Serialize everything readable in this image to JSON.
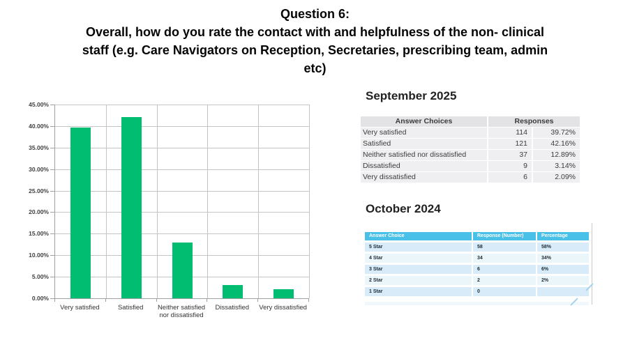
{
  "title": {
    "lines": [
      "Question 6:",
      "Overall, how do you rate the contact with and helpfulness of the non- clinical",
      "staff (e.g. Care Navigators on Reception, Secretaries, prescribing team, admin",
      "etc)"
    ]
  },
  "colors": {
    "bar_green": "#00bd71",
    "table_header_blue": "#49c0e8",
    "table_row_blue_dark": "#d7ecf8",
    "table_row_blue_light": "#ebf6fb",
    "table_header_gray": "#e3e3e6",
    "table_row_gray": "#efeff1"
  },
  "chart_data": [
    {
      "type": "bar",
      "title": "",
      "xlabel": "",
      "ylabel": "",
      "categories": [
        "Very satisfied",
        "Satisfied",
        "Neither satisfied nor dissatisfied",
        "Dissatisfied",
        "Very dissatisfied"
      ],
      "values": [
        39.72,
        42.16,
        12.89,
        3.14,
        2.09
      ],
      "y_ticks": [
        "0.00%",
        "5.00%",
        "10.00%",
        "15.00%",
        "20.00%",
        "25.00%",
        "30.00%",
        "35.00%",
        "40.00%",
        "45.00%"
      ],
      "ylim": [
        0,
        45
      ],
      "grid": true,
      "legend": false,
      "bar_color": "#00bd71"
    },
    {
      "type": "table",
      "title": "September 2025",
      "columns": [
        "Answer Choices",
        "Responses"
      ],
      "rows": [
        [
          "Very satisfied",
          "114",
          "39.72%"
        ],
        [
          "Satisfied",
          "121",
          "42.16%"
        ],
        [
          "Neither satisfied nor dissatisfied",
          "37",
          "12.89%"
        ],
        [
          "Dissatisfied",
          "9",
          "3.14%"
        ],
        [
          "Very dissatisfied",
          "6",
          "2.09%"
        ]
      ]
    },
    {
      "type": "table",
      "title": "October 2024",
      "columns": [
        "Answer Choice",
        "Response (Number)",
        "Percentage"
      ],
      "rows": [
        [
          "5 Star",
          "58",
          "58%"
        ],
        [
          "4 Star",
          "34",
          "34%"
        ],
        [
          "3 Star",
          "6",
          "6%"
        ],
        [
          "2 Star",
          "2",
          "2%"
        ],
        [
          "1 Star",
          "0",
          ""
        ]
      ]
    }
  ]
}
